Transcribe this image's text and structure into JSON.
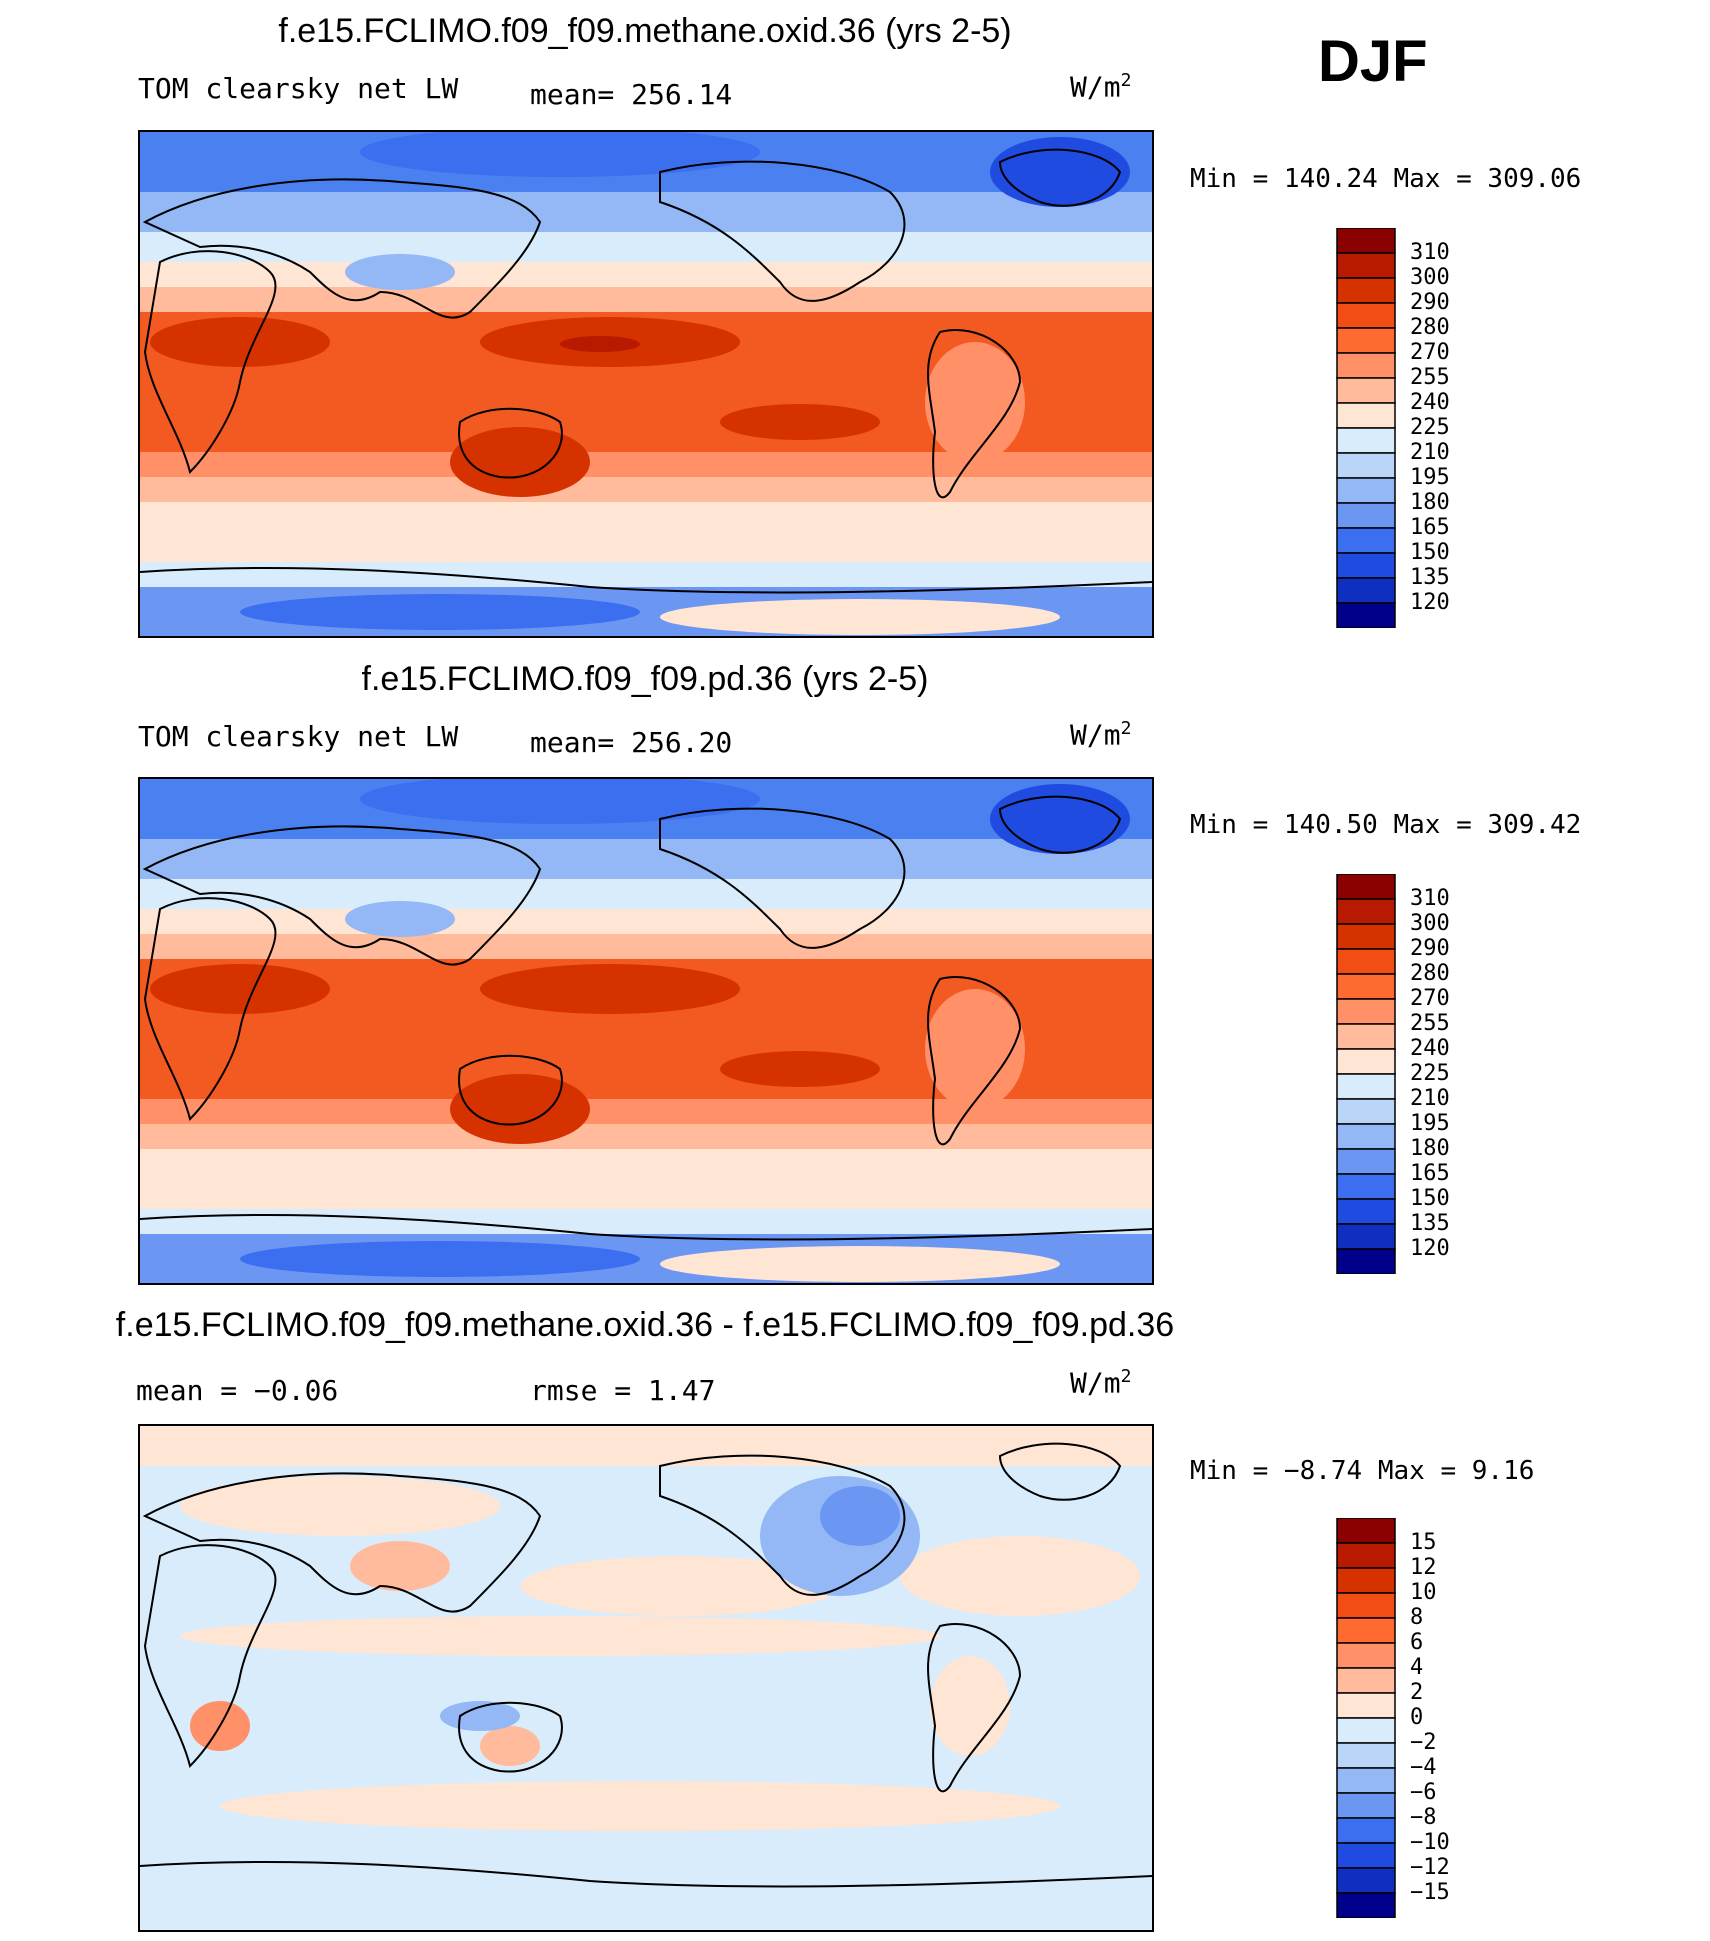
{
  "season": "DJF",
  "units_label": "W/m",
  "units_sup": "2",
  "panels": [
    {
      "title": "f.e15.FCLIMO.f09_f09.methane.oxid.36 (yrs 2-5)",
      "left_label": "TOM clearsky net LW",
      "center_label": "mean= 256.14",
      "minmax": "Min = 140.24 Max = 309.06"
    },
    {
      "title": "f.e15.FCLIMO.f09_f09.pd.36 (yrs 2-5)",
      "left_label": "TOM clearsky net LW",
      "center_label": "mean= 256.20",
      "minmax": "Min = 140.50 Max = 309.42"
    },
    {
      "title": "f.e15.FCLIMO.f09_f09.methane.oxid.36 - f.e15.FCLIMO.f09_f09.pd.36",
      "left_label": "mean =   −0.06",
      "center_label": "rmse =    1.47",
      "minmax": "Min =   −8.74 Max =    9.16"
    }
  ],
  "chart_data": [
    {
      "type": "heatmap",
      "title": "f.e15.FCLIMO.f09_f09.methane.oxid.36 (yrs 2-5)",
      "variable": "TOM clearsky net LW",
      "units": "W/m2",
      "mean": 256.14,
      "min": 140.24,
      "max": 309.06,
      "colorbar_levels": [
        "310",
        "300",
        "290",
        "280",
        "270",
        "255",
        "240",
        "225",
        "210",
        "195",
        "180",
        "165",
        "150",
        "135",
        "120"
      ],
      "colors": [
        "#8b0000",
        "#b81a00",
        "#d63200",
        "#f24d12",
        "#ff6a30",
        "#ff9068",
        "#ffbb9c",
        "#ffe5d4",
        "#d8ecfb",
        "#b9d6f8",
        "#93b8f5",
        "#6b97f2",
        "#3c6ef0",
        "#1f4be0",
        "#0f2fc0",
        "#00008b"
      ]
    },
    {
      "type": "heatmap",
      "title": "f.e15.FCLIMO.f09_f09.pd.36 (yrs 2-5)",
      "variable": "TOM clearsky net LW",
      "units": "W/m2",
      "mean": 256.2,
      "min": 140.5,
      "max": 309.42,
      "colorbar_levels": [
        "310",
        "300",
        "290",
        "280",
        "270",
        "255",
        "240",
        "225",
        "210",
        "195",
        "180",
        "165",
        "150",
        "135",
        "120"
      ],
      "colors": [
        "#8b0000",
        "#b81a00",
        "#d63200",
        "#f24d12",
        "#ff6a30",
        "#ff9068",
        "#ffbb9c",
        "#ffe5d4",
        "#d8ecfb",
        "#b9d6f8",
        "#93b8f5",
        "#6b97f2",
        "#3c6ef0",
        "#1f4be0",
        "#0f2fc0",
        "#00008b"
      ]
    },
    {
      "type": "heatmap",
      "title": "f.e15.FCLIMO.f09_f09.methane.oxid.36 - f.e15.FCLIMO.f09_f09.pd.36",
      "units": "W/m2",
      "mean": -0.06,
      "rmse": 1.47,
      "min": -8.74,
      "max": 9.16,
      "colorbar_levels": [
        "15",
        "12",
        "10",
        "8",
        "6",
        "4",
        "2",
        "0",
        "−2",
        "−4",
        "−6",
        "−8",
        "−10",
        "−12",
        "−15"
      ],
      "colors": [
        "#8b0000",
        "#b81a00",
        "#d63200",
        "#f24d12",
        "#ff6a30",
        "#ff9068",
        "#ffbb9c",
        "#ffe5d4",
        "#d8ecfb",
        "#b9d6f8",
        "#93b8f5",
        "#6b97f2",
        "#3c6ef0",
        "#1f4be0",
        "#0f2fc0",
        "#00008b"
      ]
    }
  ]
}
